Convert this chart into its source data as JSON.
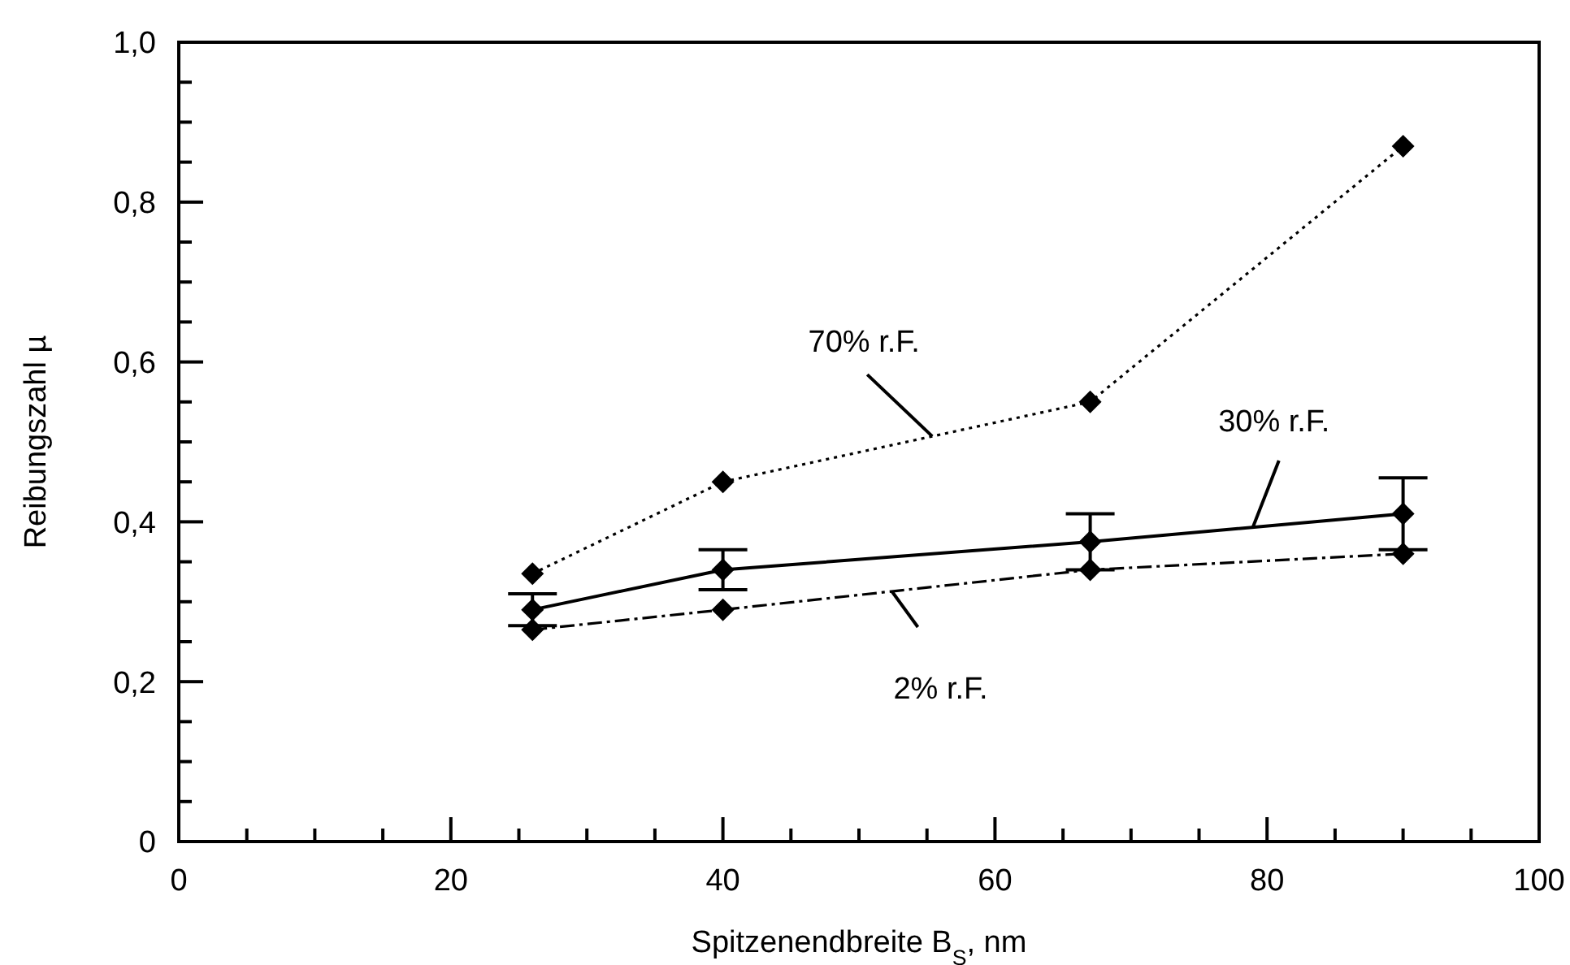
{
  "chart_data": {
    "type": "line",
    "xlabel": "Spitzenendbreite B$_{S}$, nm",
    "ylabel": "Reibungszahl µ",
    "x": [
      26,
      40,
      67,
      90
    ],
    "series": [
      {
        "name": "70% r.F.",
        "color": "#000000",
        "line_style": "dotted",
        "values": [
          0.335,
          0.45,
          0.55,
          0.87
        ]
      },
      {
        "name": "30% r.F.",
        "color": "#000000",
        "line_style": "solid",
        "values": [
          0.29,
          0.34,
          0.375,
          0.41
        ],
        "errors": [
          0.02,
          0.025,
          0.035,
          0.045
        ]
      },
      {
        "name": "2% r.F.",
        "color": "#000000",
        "line_style": "dashed",
        "values": [
          0.265,
          0.29,
          0.34,
          0.36
        ]
      }
    ],
    "marker": "diamond",
    "grid": false,
    "legend": false,
    "xlim": [
      0,
      100
    ],
    "xticks": [
      0,
      20,
      40,
      60,
      80,
      100
    ],
    "ylim": [
      0,
      1
    ],
    "yticks": [
      {
        "value": 0,
        "label": "0"
      },
      {
        "value": 0.2,
        "label": "0,2"
      },
      {
        "value": 0.4,
        "label": "0,4"
      },
      {
        "value": 0.6,
        "label": "0,6"
      },
      {
        "value": 0.8,
        "label": "0,8"
      },
      {
        "value": 1,
        "label": "1,0"
      }
    ]
  }
}
